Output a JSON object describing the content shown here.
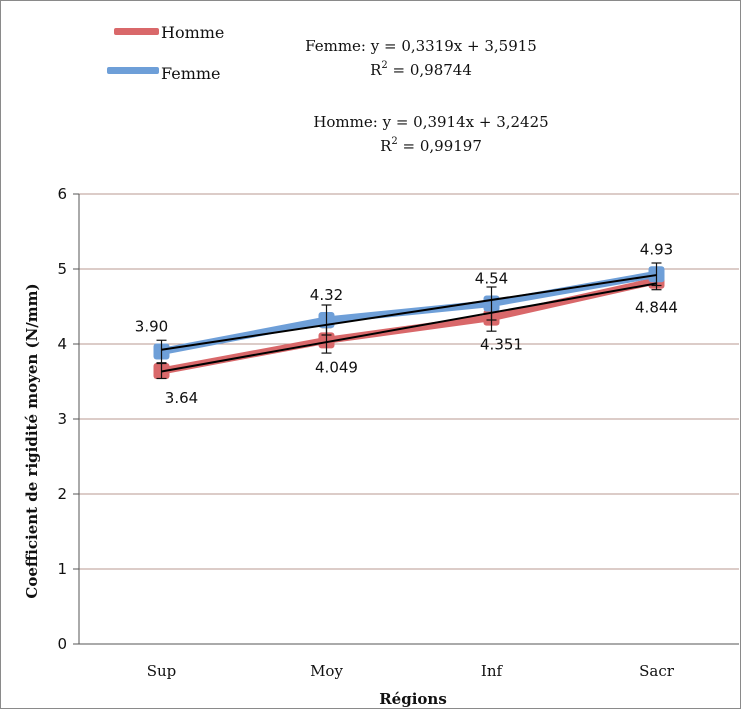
{
  "chart_data": {
    "type": "line",
    "xlabel": "Régions",
    "ylabel": "Coefficient de rigidité moyen (N/mm)",
    "ylim": [
      0,
      6
    ],
    "yticks": [
      "0",
      "1",
      "2",
      "3",
      "4",
      "5",
      "6"
    ],
    "grid": true,
    "legend_position": "top-left",
    "categories": [
      "Sup",
      "Moy",
      "Inf",
      "Sacr"
    ],
    "series": [
      {
        "name": "Homme",
        "color": "#d9686a",
        "values": [
          3.64,
          4.049,
          4.351,
          4.844
        ],
        "labels": [
          "3.64",
          "4.049",
          "4.351",
          "4.844"
        ],
        "error": [
          0.1,
          0.17,
          0.18,
          0.12
        ]
      },
      {
        "name": "Femme",
        "color": "#6e9fd8",
        "values": [
          3.9,
          4.32,
          4.54,
          4.93
        ],
        "labels": [
          "3.90",
          "4.32",
          "4.54",
          "4.93"
        ],
        "error": [
          0.15,
          0.2,
          0.22,
          0.15
        ]
      }
    ],
    "trendlines": [
      {
        "series": "Femme",
        "slope": 0.3319,
        "intercept": 3.5915,
        "color": "#000000"
      },
      {
        "series": "Homme",
        "slope": 0.3914,
        "intercept": 3.2425,
        "color": "#000000"
      }
    ],
    "annotations": [
      {
        "series": "Femme",
        "equation": "Femme: y = 0,3319x + 3,5915",
        "r2_label": "R",
        "r2_sup": "2",
        "r2_value": " = 0,98744"
      },
      {
        "series": "Homme",
        "equation": "Homme: y = 0,3914x + 3,2425",
        "r2_label": "R",
        "r2_sup": "2",
        "r2_value": " = 0,99197"
      }
    ]
  }
}
